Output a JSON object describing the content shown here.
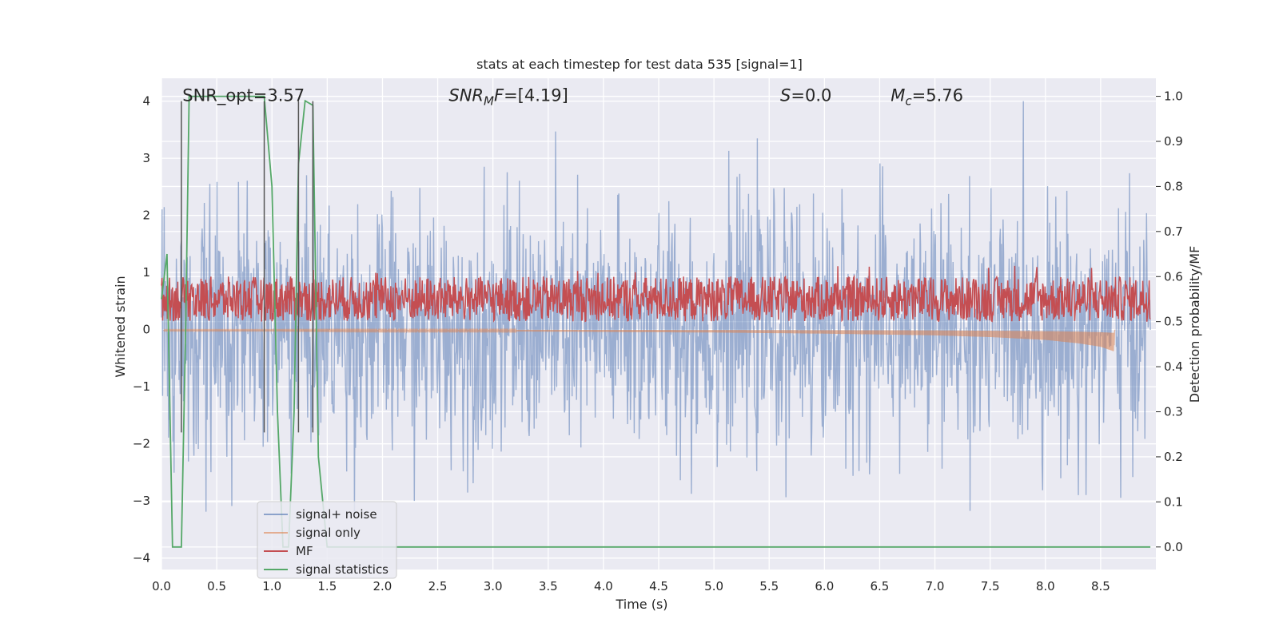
{
  "chart_data": {
    "type": "line",
    "title": "stats at each timestep for test data 535 [signal=1]",
    "xlabel": "Time (s)",
    "ylabel_left": "Whitened strain",
    "ylabel_right": "Detection probability/MF",
    "xlim": [
      0.0,
      9.0
    ],
    "ylim_left": [
      -4.2,
      4.4
    ],
    "ylim_right": [
      -0.05,
      1.04
    ],
    "x_ticks": [
      0.0,
      0.5,
      1.0,
      1.5,
      2.0,
      2.5,
      3.0,
      3.5,
      4.0,
      4.5,
      5.0,
      5.5,
      6.0,
      6.5,
      7.0,
      7.5,
      8.0,
      8.5
    ],
    "x_tick_labels": [
      "0.0",
      "0.5",
      "1.0",
      "1.5",
      "2.0",
      "2.5",
      "3.0",
      "3.5",
      "4.0",
      "4.5",
      "5.0",
      "5.5",
      "6.0",
      "6.5",
      "7.0",
      "7.5",
      "8.0",
      "8.5"
    ],
    "y_left_ticks": [
      -4,
      -3,
      -2,
      -1,
      0,
      1,
      2,
      3,
      4
    ],
    "y_left_tick_labels": [
      "−4",
      "−3",
      "−2",
      "−1",
      "0",
      "1",
      "2",
      "3",
      "4"
    ],
    "y_right_ticks": [
      0.0,
      0.1,
      0.2,
      0.3,
      0.4,
      0.5,
      0.6,
      0.7,
      0.8,
      0.9,
      1.0
    ],
    "y_right_tick_labels": [
      "0.0",
      "0.1",
      "0.2",
      "0.3",
      "0.4",
      "0.5",
      "0.6",
      "0.7",
      "0.8",
      "0.9",
      "1.0"
    ],
    "grid": true,
    "background": "#eaeaf2",
    "annotations": [
      {
        "text": "SNR_opt=3.57",
        "x": 0.19,
        "y": 4.1
      },
      {
        "text": "SNR_MF=[4.19]",
        "x": 2.6,
        "y": 4.1
      },
      {
        "text": "S=0.0",
        "x": 5.6,
        "y": 4.1
      },
      {
        "text": "M_c=5.76",
        "x": 6.6,
        "y": 4.1
      }
    ],
    "vertical_lines": [
      0.18,
      0.93,
      1.24,
      1.37
    ],
    "series": [
      {
        "name": "signal+ noise",
        "color": "#4c72b0",
        "axis": "left",
        "style": "noise-band",
        "amplitude_envelope": [
          -3.9,
          4.0
        ]
      },
      {
        "name": "signal only",
        "color": "#dd8452",
        "axis": "left",
        "style": "chirp",
        "x": [
          0.0,
          1.0,
          2.0,
          3.0,
          4.0,
          5.0,
          6.0,
          7.0,
          7.5,
          8.0,
          8.3,
          8.5,
          8.62,
          8.63
        ],
        "envelope": [
          0.02,
          0.02,
          0.03,
          0.03,
          0.04,
          0.05,
          0.07,
          0.1,
          0.13,
          0.18,
          0.24,
          0.3,
          0.38,
          0.0
        ]
      },
      {
        "name": "MF",
        "color": "#c44e52",
        "axis": "right",
        "style": "noisy-band",
        "band": [
          0.5,
          0.6
        ]
      },
      {
        "name": "signal statistics",
        "color": "#55a868",
        "axis": "right",
        "x": [
          0.0,
          0.05,
          0.1,
          0.15,
          0.18,
          0.22,
          0.25,
          0.3,
          0.6,
          0.93,
          1.0,
          1.05,
          1.1,
          1.15,
          1.2,
          1.24,
          1.3,
          1.37,
          1.42,
          1.5,
          1.55,
          2.0,
          3.0,
          4.0,
          5.0,
          6.0,
          7.0,
          8.0,
          8.95
        ],
        "y": [
          0.55,
          0.65,
          0.0,
          0.0,
          0.0,
          0.5,
          1.0,
          1.0,
          1.0,
          1.0,
          0.8,
          0.3,
          0.0,
          0.0,
          0.3,
          0.85,
          0.99,
          0.98,
          0.2,
          0.0,
          0.0,
          0.0,
          0.0,
          0.0,
          0.0,
          0.0,
          0.0,
          0.0,
          0.0
        ]
      }
    ],
    "legend": {
      "placement": "lower-left",
      "entries": [
        "signal+ noise",
        "signal only",
        "MF",
        "signal statistics"
      ]
    }
  }
}
